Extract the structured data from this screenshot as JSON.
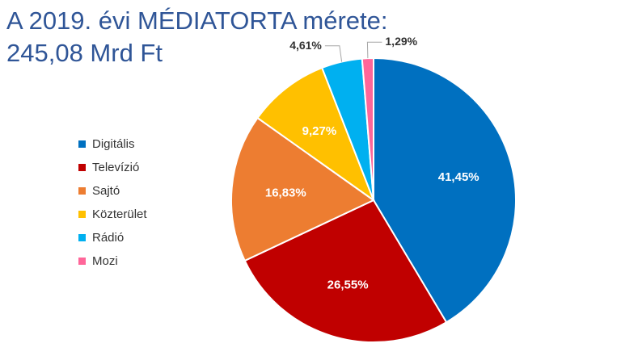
{
  "title": {
    "line1": "A 2019. évi MÉDIATORTA mérete:",
    "line2": "245,08 Mrd Ft"
  },
  "chart_data": {
    "type": "pie",
    "title": "A 2019. évi MÉDIATORTA mérete: 245,08 Mrd Ft",
    "legend_position": "left",
    "categories": [
      "Digitális",
      "Televízió",
      "Sajtó",
      "Közterület",
      "Rádió",
      "Mozi"
    ],
    "values": [
      41.45,
      26.55,
      16.83,
      9.27,
      4.61,
      1.29
    ],
    "labels": [
      "41,45%",
      "26,55%",
      "16,83%",
      "9,27%",
      "4,61%",
      "1,29%"
    ],
    "colors": [
      "#0070c0",
      "#c00000",
      "#ed7d31",
      "#ffc000",
      "#00b0f0",
      "#ff6699"
    ]
  }
}
